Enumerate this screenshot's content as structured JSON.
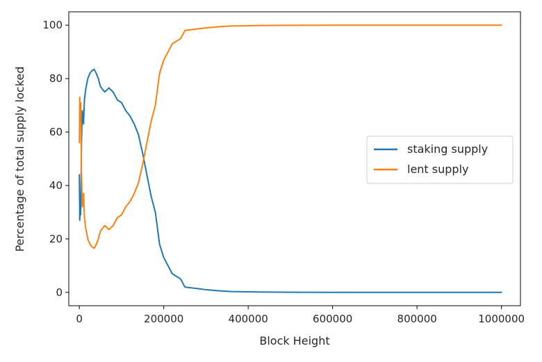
{
  "chart_data": {
    "type": "line",
    "xlabel": "Block Height",
    "ylabel": "Percentage of total supply locked",
    "xlim": [
      -25000,
      1045000
    ],
    "ylim": [
      -5,
      105
    ],
    "xticks": [
      0,
      200000,
      400000,
      600000,
      800000,
      1000000
    ],
    "xtick_labels": [
      "0",
      "200000",
      "400000",
      "600000",
      "800000",
      "1000000"
    ],
    "yticks": [
      0,
      20,
      40,
      60,
      80,
      100
    ],
    "ytick_labels": [
      "0",
      "20",
      "40",
      "60",
      "80",
      "100"
    ],
    "grid": false,
    "legend_position": "center-right",
    "series": [
      {
        "name": "staking supply",
        "color": "#1f77b4",
        "x": [
          0,
          1000,
          2000,
          3000,
          4000,
          5000,
          7000,
          10000,
          12000,
          15000,
          20000,
          25000,
          30000,
          35000,
          40000,
          45000,
          50000,
          60000,
          70000,
          80000,
          90000,
          100000,
          110000,
          120000,
          130000,
          140000,
          150000,
          160000,
          170000,
          180000,
          190000,
          200000,
          210000,
          220000,
          230000,
          240000,
          250000,
          260000,
          280000,
          300000,
          330000,
          360000,
          400000,
          450000,
          500000,
          600000,
          700000,
          800000,
          900000,
          1000000
        ],
        "y": [
          44,
          27,
          33,
          29,
          38,
          55,
          68,
          63,
          72,
          76,
          80,
          82,
          83,
          83.5,
          82,
          80,
          77,
          75,
          76.5,
          75,
          72,
          71,
          68,
          66,
          63,
          59,
          52,
          44,
          36,
          30,
          18,
          13,
          10,
          7,
          6,
          5,
          2,
          1.8,
          1.4,
          1,
          0.6,
          0.3,
          0.2,
          0.1,
          0.05,
          0.02,
          0.01,
          0.01,
          0.01,
          0.01
        ]
      },
      {
        "name": "lent supply",
        "color": "#ff7f0e",
        "x": [
          0,
          1000,
          2000,
          3000,
          4000,
          5000,
          7000,
          10000,
          12000,
          15000,
          20000,
          25000,
          30000,
          35000,
          40000,
          45000,
          50000,
          60000,
          70000,
          80000,
          90000,
          100000,
          110000,
          120000,
          130000,
          140000,
          150000,
          160000,
          170000,
          180000,
          190000,
          200000,
          210000,
          220000,
          230000,
          240000,
          250000,
          260000,
          280000,
          300000,
          330000,
          360000,
          400000,
          450000,
          500000,
          600000,
          700000,
          800000,
          900000,
          1000000
        ],
        "y": [
          56,
          73,
          67,
          71,
          62,
          45,
          32,
          37,
          28,
          24,
          20,
          18,
          17,
          16.5,
          18,
          20,
          23,
          25,
          23.5,
          25,
          28,
          29,
          32,
          34,
          37,
          41,
          48,
          56,
          64,
          70,
          82,
          87,
          90,
          93,
          94,
          95,
          98,
          98.2,
          98.6,
          99,
          99.4,
          99.7,
          99.8,
          99.9,
          99.95,
          99.98,
          99.99,
          99.99,
          99.99,
          99.99
        ]
      }
    ]
  }
}
